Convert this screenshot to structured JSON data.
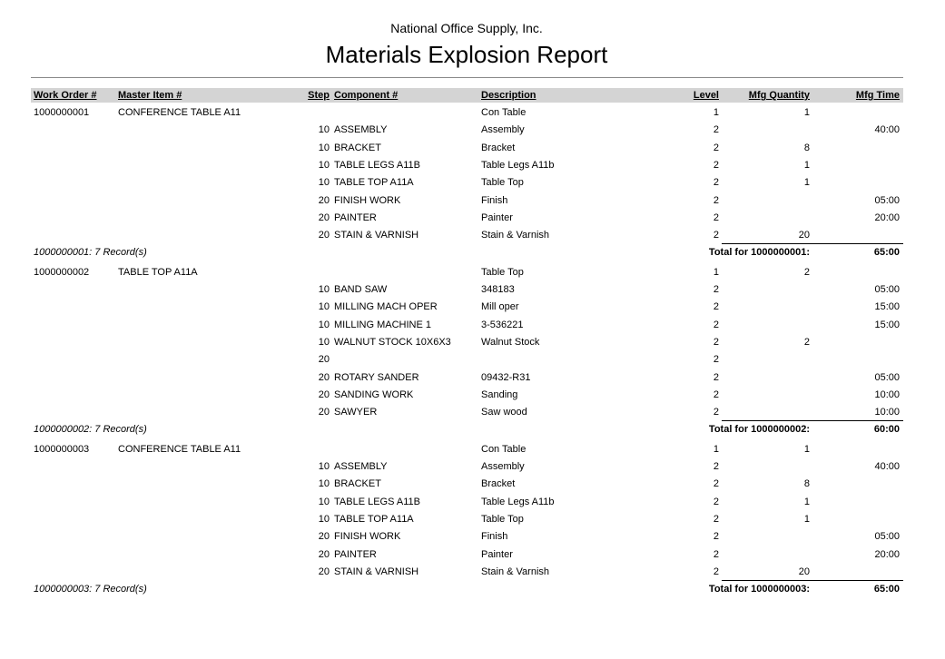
{
  "report": {
    "company": "National Office Supply, Inc.",
    "title": "Materials Explosion Report"
  },
  "columns": {
    "work_order": "Work Order #",
    "master_item": "Master Item #",
    "step": "Step",
    "component": "Component #",
    "description": "Description",
    "level": "Level",
    "mfg_quantity": "Mfg Quantity",
    "mfg_time": "Mfg Time"
  },
  "groups": [
    {
      "work_order": "1000000001",
      "master_item": "CONFERENCE TABLE A11",
      "description": "Con Table",
      "level": "1",
      "mfg_quantity": "1",
      "lines": [
        {
          "step": "10",
          "component": "ASSEMBLY",
          "description": "Assembly",
          "level": "2",
          "mfg_quantity": "",
          "mfg_time": "40:00"
        },
        {
          "step": "10",
          "component": "BRACKET",
          "description": "Bracket",
          "level": "2",
          "mfg_quantity": "8",
          "mfg_time": ""
        },
        {
          "step": "10",
          "component": "TABLE LEGS A11B",
          "description": "Table Legs A11b",
          "level": "2",
          "mfg_quantity": "1",
          "mfg_time": ""
        },
        {
          "step": "10",
          "component": "TABLE TOP A11A",
          "description": "Table Top",
          "level": "2",
          "mfg_quantity": "1",
          "mfg_time": ""
        },
        {
          "step": "20",
          "component": "FINISH WORK",
          "description": "Finish",
          "level": "2",
          "mfg_quantity": "",
          "mfg_time": "05:00"
        },
        {
          "step": "20",
          "component": "PAINTER",
          "description": "Painter",
          "level": "2",
          "mfg_quantity": "",
          "mfg_time": "20:00"
        },
        {
          "step": "20",
          "component": "STAIN & VARNISH",
          "description": "Stain & Varnish",
          "level": "2",
          "mfg_quantity": "20",
          "mfg_time": ""
        }
      ],
      "records": "1000000001: 7 Record(s)",
      "total_label": "Total for 1000000001:",
      "total_time": "65:00"
    },
    {
      "work_order": "1000000002",
      "master_item": "TABLE TOP A11A",
      "description": "Table Top",
      "level": "1",
      "mfg_quantity": "2",
      "lines": [
        {
          "step": "10",
          "component": "BAND SAW",
          "description": "348183",
          "level": "2",
          "mfg_quantity": "",
          "mfg_time": "05:00"
        },
        {
          "step": "10",
          "component": "MILLING MACH OPER",
          "description": "Mill oper",
          "level": "2",
          "mfg_quantity": "",
          "mfg_time": "15:00"
        },
        {
          "step": "10",
          "component": "MILLING MACHINE 1",
          "description": "3-536221",
          "level": "2",
          "mfg_quantity": "",
          "mfg_time": "15:00"
        },
        {
          "step": "10",
          "component": "WALNUT STOCK 10X6X3",
          "description": "Walnut Stock",
          "level": "2",
          "mfg_quantity": "2",
          "mfg_time": ""
        },
        {
          "step": "20",
          "component": "",
          "description": "",
          "level": "2",
          "mfg_quantity": "",
          "mfg_time": ""
        },
        {
          "step": "20",
          "component": "ROTARY SANDER",
          "description": "09432-R31",
          "level": "2",
          "mfg_quantity": "",
          "mfg_time": "05:00"
        },
        {
          "step": "20",
          "component": "SANDING WORK",
          "description": "Sanding",
          "level": "2",
          "mfg_quantity": "",
          "mfg_time": "10:00"
        },
        {
          "step": "20",
          "component": "SAWYER",
          "description": "Saw wood",
          "level": "2",
          "mfg_quantity": "",
          "mfg_time": "10:00"
        }
      ],
      "records": "1000000002: 7 Record(s)",
      "total_label": "Total for 1000000002:",
      "total_time": "60:00"
    },
    {
      "work_order": "1000000003",
      "master_item": "CONFERENCE TABLE A11",
      "description": "Con Table",
      "level": "1",
      "mfg_quantity": "1",
      "lines": [
        {
          "step": "10",
          "component": "ASSEMBLY",
          "description": "Assembly",
          "level": "2",
          "mfg_quantity": "",
          "mfg_time": "40:00"
        },
        {
          "step": "10",
          "component": "BRACKET",
          "description": "Bracket",
          "level": "2",
          "mfg_quantity": "8",
          "mfg_time": ""
        },
        {
          "step": "10",
          "component": "TABLE LEGS A11B",
          "description": "Table Legs A11b",
          "level": "2",
          "mfg_quantity": "1",
          "mfg_time": ""
        },
        {
          "step": "10",
          "component": "TABLE TOP A11A",
          "description": "Table Top",
          "level": "2",
          "mfg_quantity": "1",
          "mfg_time": ""
        },
        {
          "step": "20",
          "component": "FINISH WORK",
          "description": "Finish",
          "level": "2",
          "mfg_quantity": "",
          "mfg_time": "05:00"
        },
        {
          "step": "20",
          "component": "PAINTER",
          "description": "Painter",
          "level": "2",
          "mfg_quantity": "",
          "mfg_time": "20:00"
        },
        {
          "step": "20",
          "component": "STAIN & VARNISH",
          "description": "Stain & Varnish",
          "level": "2",
          "mfg_quantity": "20",
          "mfg_time": ""
        }
      ],
      "records": "1000000003: 7 Record(s)",
      "total_label": "Total for 1000000003:",
      "total_time": "65:00"
    }
  ]
}
